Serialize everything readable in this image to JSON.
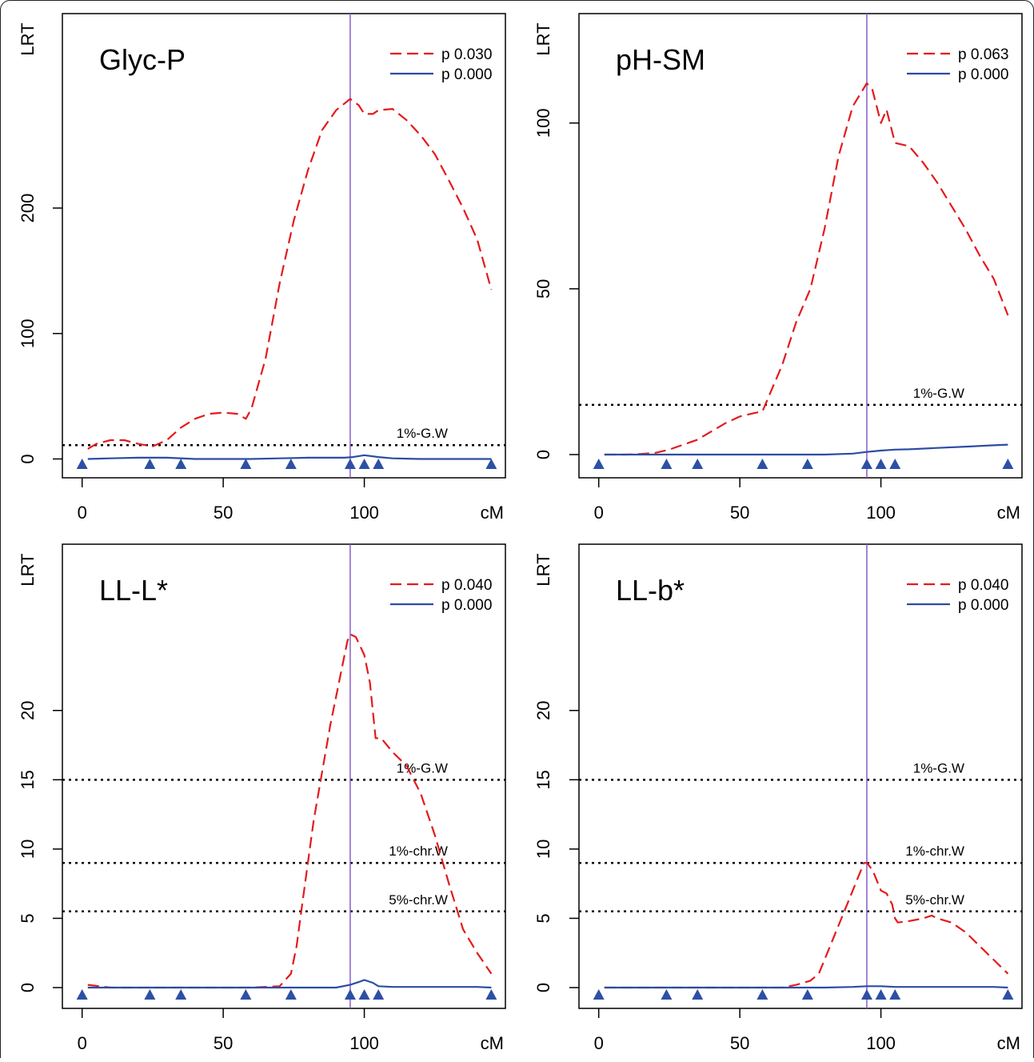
{
  "chart_data": [
    {
      "type": "line",
      "title": "Glyc-P",
      "xlabel": "cM",
      "ylabel": "LRT",
      "xlim": [
        -7,
        150
      ],
      "ylim": [
        -15,
        355
      ],
      "xticks": [
        0,
        50,
        100
      ],
      "yticks": [
        0,
        100,
        200
      ],
      "grid": false,
      "legend_position": "top-right",
      "peak_marker_x": 95,
      "markers_x": [
        0,
        24,
        35,
        58,
        74,
        95,
        100,
        105,
        145
      ],
      "thresholds": [
        {
          "label": "1%-G.W",
          "value": 11
        }
      ],
      "series": [
        {
          "name": "p 0.030",
          "color": "#e41a1c",
          "style": "dashed",
          "x": [
            2,
            5,
            10,
            15,
            20,
            25,
            30,
            35,
            40,
            45,
            50,
            55,
            58,
            60,
            65,
            70,
            75,
            80,
            85,
            90,
            95,
            98,
            100,
            103,
            105,
            110,
            115,
            120,
            125,
            130,
            135,
            140,
            145
          ],
          "y": [
            8,
            12,
            15,
            15,
            12,
            10,
            15,
            25,
            32,
            36,
            37,
            36,
            32,
            40,
            80,
            140,
            190,
            230,
            262,
            278,
            287,
            282,
            275,
            275,
            278,
            279,
            270,
            258,
            243,
            222,
            200,
            175,
            135
          ]
        },
        {
          "name": "p 0.000",
          "color": "#2b4da3",
          "style": "solid",
          "x": [
            2,
            10,
            20,
            30,
            40,
            50,
            60,
            70,
            80,
            90,
            93,
            96,
            100,
            105,
            110,
            120,
            130,
            140,
            145
          ],
          "y": [
            0,
            0.5,
            1,
            1,
            0,
            0,
            0,
            0.5,
            1,
            1,
            1,
            1.5,
            3,
            1.5,
            0.5,
            0,
            0,
            0,
            0
          ]
        }
      ]
    },
    {
      "type": "line",
      "title": "pH-SM",
      "xlabel": "cM",
      "ylabel": "LRT",
      "xlim": [
        -7,
        150
      ],
      "ylim": [
        -7,
        133
      ],
      "xticks": [
        0,
        50,
        100
      ],
      "yticks": [
        0,
        50,
        100
      ],
      "grid": false,
      "legend_position": "top-right",
      "peak_marker_x": 95,
      "markers_x": [
        0,
        24,
        35,
        58,
        74,
        95,
        100,
        105,
        145
      ],
      "thresholds": [
        {
          "label": "1%-G.W",
          "value": 15
        }
      ],
      "series": [
        {
          "name": "p 0.063",
          "color": "#e41a1c",
          "style": "dashed",
          "x": [
            2,
            10,
            15,
            20,
            25,
            30,
            35,
            40,
            45,
            50,
            55,
            58,
            60,
            65,
            70,
            75,
            80,
            85,
            90,
            95,
            97,
            100,
            102,
            105,
            110,
            115,
            120,
            125,
            130,
            135,
            140,
            145
          ],
          "y": [
            0,
            0,
            0.2,
            0.5,
            1.5,
            3,
            4.5,
            7,
            9.5,
            11.5,
            12.5,
            13,
            17,
            27,
            40,
            50,
            68,
            90,
            105,
            112,
            110,
            100,
            104,
            94,
            93,
            88,
            82,
            75,
            68,
            60,
            53,
            42
          ]
        },
        {
          "name": "p 0.000",
          "color": "#2b4da3",
          "style": "solid",
          "x": [
            2,
            20,
            40,
            60,
            80,
            90,
            95,
            100,
            105,
            110,
            120,
            130,
            140,
            145
          ],
          "y": [
            0,
            0,
            0,
            0,
            0,
            0.3,
            0.8,
            1.2,
            1.5,
            1.6,
            2,
            2.4,
            2.8,
            3
          ]
        }
      ]
    },
    {
      "type": "line",
      "title": "LL-L*",
      "xlabel": "cM",
      "ylabel": "LRT",
      "xlim": [
        -7,
        150
      ],
      "ylim": [
        -1.5,
        32
      ],
      "xticks": [
        0,
        50,
        100
      ],
      "yticks": [
        0,
        5,
        10,
        15,
        20
      ],
      "grid": false,
      "legend_position": "top-right",
      "peak_marker_x": 95,
      "markers_x": [
        0,
        24,
        35,
        58,
        74,
        95,
        100,
        105,
        145
      ],
      "thresholds": [
        {
          "label": "1%-G.W",
          "value": 15
        },
        {
          "label": "1%-chr.W",
          "value": 9
        },
        {
          "label": "5%-chr.W",
          "value": 5.5
        }
      ],
      "series": [
        {
          "name": "p 0.040",
          "color": "#e41a1c",
          "style": "dashed",
          "x": [
            2,
            10,
            20,
            30,
            40,
            50,
            60,
            70,
            74,
            76,
            78,
            80,
            82,
            85,
            88,
            90,
            92,
            94,
            95,
            97,
            100,
            102,
            104,
            106,
            110,
            115,
            120,
            125,
            130,
            135,
            140,
            145
          ],
          "y": [
            0.2,
            0,
            0,
            0,
            0,
            0,
            0,
            0.1,
            1,
            3,
            6,
            9,
            12,
            15.5,
            19,
            21,
            23,
            25,
            25.5,
            25.3,
            24,
            22,
            18,
            18,
            17,
            16,
            14,
            11,
            7.5,
            4.2,
            2.5,
            1
          ]
        },
        {
          "name": "p 0.000",
          "color": "#2b4da3",
          "style": "solid",
          "x": [
            2,
            20,
            40,
            60,
            80,
            90,
            95,
            98,
            100,
            103,
            105,
            110,
            120,
            130,
            140,
            145
          ],
          "y": [
            0,
            0,
            0,
            0,
            0,
            0,
            0.2,
            0.4,
            0.55,
            0.35,
            0.1,
            0.05,
            0.05,
            0.05,
            0.05,
            0
          ]
        }
      ]
    },
    {
      "type": "line",
      "title": "LL-b*",
      "xlabel": "cM",
      "ylabel": "LRT",
      "xlim": [
        -7,
        150
      ],
      "ylim": [
        -1.5,
        32
      ],
      "xticks": [
        0,
        50,
        100
      ],
      "yticks": [
        0,
        5,
        10,
        15,
        20
      ],
      "grid": false,
      "legend_position": "top-right",
      "peak_marker_x": 95,
      "markers_x": [
        0,
        24,
        35,
        58,
        74,
        95,
        100,
        105,
        145
      ],
      "thresholds": [
        {
          "label": "1%-G.W",
          "value": 15
        },
        {
          "label": "1%-chr.W",
          "value": 9
        },
        {
          "label": "5%-chr.W",
          "value": 5.5
        }
      ],
      "series": [
        {
          "name": "p 0.040",
          "color": "#e41a1c",
          "style": "dashed",
          "x": [
            2,
            20,
            40,
            60,
            65,
            70,
            75,
            78,
            80,
            83,
            86,
            89,
            92,
            94,
            95,
            97,
            100,
            102,
            104,
            105,
            106,
            110,
            115,
            118,
            120,
            125,
            130,
            135,
            140,
            145
          ],
          "y": [
            0,
            0,
            0,
            0,
            0,
            0.2,
            0.5,
            1,
            2,
            3.5,
            5,
            6.5,
            8,
            9,
            9,
            8.5,
            7,
            6.8,
            6,
            5,
            4.7,
            4.8,
            5,
            5.2,
            5,
            4.7,
            4,
            3,
            2,
            1
          ]
        },
        {
          "name": "p 0.000",
          "color": "#2b4da3",
          "style": "solid",
          "x": [
            2,
            20,
            40,
            60,
            80,
            90,
            95,
            100,
            105,
            120,
            140,
            145
          ],
          "y": [
            0,
            0,
            0,
            0,
            0,
            0.05,
            0.1,
            0.1,
            0.05,
            0.05,
            0.05,
            0
          ]
        }
      ]
    }
  ]
}
